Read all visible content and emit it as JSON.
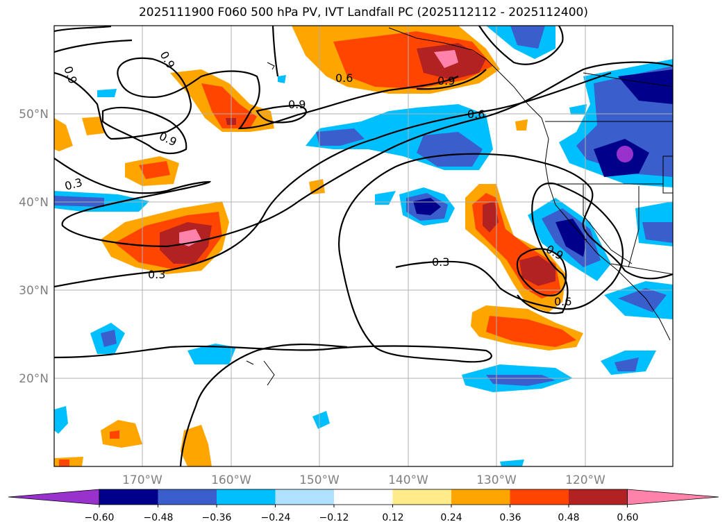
{
  "title": "2025111900 F060 500 hPa PV, IVT Landfall PC (2025112112 - 2025112400)",
  "map": {
    "type": "weather-map",
    "lat_range": [
      10,
      60
    ],
    "lon_range": [
      -180,
      -110
    ],
    "latitude_labels": [
      "20°N",
      "30°N",
      "40°N",
      "50°N"
    ],
    "longitude_labels": [
      "170°W",
      "160°W",
      "150°W",
      "140°W",
      "130°W",
      "120°W"
    ],
    "contour_levels": [
      0.3,
      0.6,
      0.9
    ],
    "contour_labels": [
      "0.9",
      "0.9",
      "0.9",
      "0.9",
      "0.3",
      "0.3",
      "0.6",
      "0.9",
      "0.6",
      "0.3",
      "0.9",
      "0.6"
    ]
  },
  "colorbar": {
    "ticks": [
      "−0.60",
      "−0.48",
      "−0.36",
      "−0.24",
      "−0.12",
      "0.12",
      "0.24",
      "0.36",
      "0.48",
      "0.60"
    ],
    "colors": [
      "#9932cc",
      "#00008b",
      "#3a5fcd",
      "#00bfff",
      "#b0e2ff",
      "#ffffff",
      "#ffeb8a",
      "#ffa500",
      "#ff4500",
      "#b22222",
      "#ff82ab"
    ]
  }
}
